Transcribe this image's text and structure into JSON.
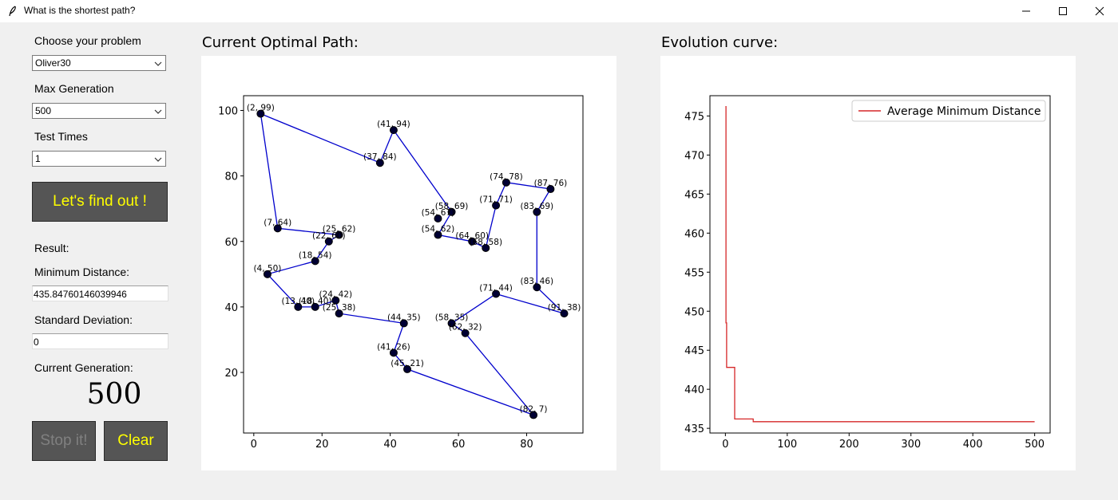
{
  "window": {
    "title": "What is the shortest path?",
    "icon": "feather-icon",
    "controls": [
      "minimize-icon",
      "maximize-icon",
      "close-icon"
    ]
  },
  "sidebar": {
    "problem_label": "Choose your problem",
    "problem_value": "Oliver30",
    "max_gen_label": "Max Generation",
    "max_gen_value": "500",
    "test_times_label": "Test Times",
    "test_times_value": "1",
    "find_button": "Let's find out !",
    "result_label": "Result:",
    "min_dist_label": "Minimum Distance:",
    "min_dist_value": "435.84760146039946",
    "std_label": "Standard Deviation:",
    "std_value": "0",
    "cur_gen_label": "Current Generation:",
    "cur_gen_value": "500",
    "stop_button": "Stop it!",
    "clear_button": "Clear"
  },
  "colors": {
    "button_bg": "#555555",
    "button_text": "#ffff00",
    "button_disabled_text": "#808080",
    "path_line": "#0000cc",
    "node": "#000033",
    "curve": "#d62728"
  },
  "path_panel": {
    "title": "Current Optimal Path:"
  },
  "evolution_panel": {
    "title": "Evolution curve:"
  },
  "chart_data": [
    {
      "type": "scatter",
      "title": "",
      "xlabel": "",
      "ylabel": "",
      "xlim": [
        -3,
        96.5
      ],
      "ylim": [
        1.5,
        104.5
      ],
      "xticks": [
        0,
        20,
        40,
        60,
        80
      ],
      "yticks": [
        20,
        40,
        60,
        80,
        100
      ],
      "route": [
        [
          2,
          99
        ],
        [
          41,
          94
        ],
        [
          58,
          69
        ],
        [
          54,
          67
        ],
        [
          37,
          84
        ],
        [
          2,
          99
        ]
      ],
      "route_full": [
        [
          2,
          99
        ],
        [
          7,
          64
        ],
        [
          25,
          62
        ],
        [
          22,
          60
        ],
        [
          18,
          54
        ],
        [
          4,
          50
        ],
        [
          13,
          40
        ],
        [
          18,
          40
        ],
        [
          24,
          42
        ],
        [
          25,
          38
        ],
        [
          44,
          35
        ],
        [
          41,
          26
        ],
        [
          45,
          21
        ],
        [
          82,
          7
        ],
        [
          62,
          32
        ],
        [
          58,
          35
        ],
        [
          71,
          44
        ],
        [
          91,
          38
        ],
        [
          83,
          46
        ],
        [
          83,
          69
        ],
        [
          87,
          76
        ],
        [
          74,
          78
        ],
        [
          71,
          71
        ],
        [
          68,
          58
        ],
        [
          64,
          60
        ],
        [
          54,
          62
        ],
        [
          58,
          69
        ],
        [
          41,
          94
        ],
        [
          37,
          84
        ]
      ],
      "points": [
        {
          "x": 2,
          "y": 99,
          "label": "(2, 99)"
        },
        {
          "x": 41,
          "y": 94,
          "label": "(41, 94)"
        },
        {
          "x": 37,
          "y": 84,
          "label": "(37, 84)"
        },
        {
          "x": 74,
          "y": 78,
          "label": "(74, 78)"
        },
        {
          "x": 87,
          "y": 76,
          "label": "(87, 76)"
        },
        {
          "x": 71,
          "y": 71,
          "label": "(71, 71)"
        },
        {
          "x": 83,
          "y": 69,
          "label": "(83, 69)"
        },
        {
          "x": 58,
          "y": 69,
          "label": "(58, 69)"
        },
        {
          "x": 54,
          "y": 67,
          "label": "(54, 67)"
        },
        {
          "x": 7,
          "y": 64,
          "label": "(7, 64)"
        },
        {
          "x": 25,
          "y": 62,
          "label": "(25, 62)"
        },
        {
          "x": 54,
          "y": 62,
          "label": "(54, 62)"
        },
        {
          "x": 22,
          "y": 60,
          "label": "(22, 60)"
        },
        {
          "x": 64,
          "y": 60,
          "label": "(64, 60)"
        },
        {
          "x": 68,
          "y": 58,
          "label": "(68, 58)"
        },
        {
          "x": 18,
          "y": 54,
          "label": "(18, 54)"
        },
        {
          "x": 4,
          "y": 50,
          "label": "(4, 50)"
        },
        {
          "x": 83,
          "y": 46,
          "label": "(83, 46)"
        },
        {
          "x": 71,
          "y": 44,
          "label": "(71, 44)"
        },
        {
          "x": 24,
          "y": 42,
          "label": "(24, 42)"
        },
        {
          "x": 13,
          "y": 40,
          "label": "(13, 40)"
        },
        {
          "x": 18,
          "y": 40,
          "label": "(18, 40)"
        },
        {
          "x": 91,
          "y": 38,
          "label": "(91, 38)"
        },
        {
          "x": 25,
          "y": 38,
          "label": "(25, 38)"
        },
        {
          "x": 44,
          "y": 35,
          "label": "(44, 35)"
        },
        {
          "x": 58,
          "y": 35,
          "label": "(58, 35)"
        },
        {
          "x": 62,
          "y": 32,
          "label": "(62, 32)"
        },
        {
          "x": 41,
          "y": 26,
          "label": "(41, 26)"
        },
        {
          "x": 45,
          "y": 21,
          "label": "(45, 21)"
        },
        {
          "x": 82,
          "y": 7,
          "label": "(82, 7)"
        }
      ]
    },
    {
      "type": "line",
      "title": "",
      "xlabel": "",
      "ylabel": "",
      "xlim": [
        -25,
        525
      ],
      "ylim": [
        434.4,
        477.6
      ],
      "xticks": [
        0,
        100,
        200,
        300,
        400,
        500
      ],
      "yticks": [
        435,
        440,
        445,
        450,
        455,
        460,
        465,
        470,
        475
      ],
      "legend": "upper-right",
      "series": [
        {
          "name": "Average Minimum Distance",
          "x": [
            0,
            1,
            1,
            2,
            2,
            3,
            3,
            15,
            15,
            45,
            45,
            500
          ],
          "y": [
            476.2,
            476.2,
            448.5,
            448.5,
            442.8,
            442.8,
            442.8,
            442.8,
            436.2,
            436.2,
            435.85,
            435.85
          ]
        }
      ]
    }
  ]
}
